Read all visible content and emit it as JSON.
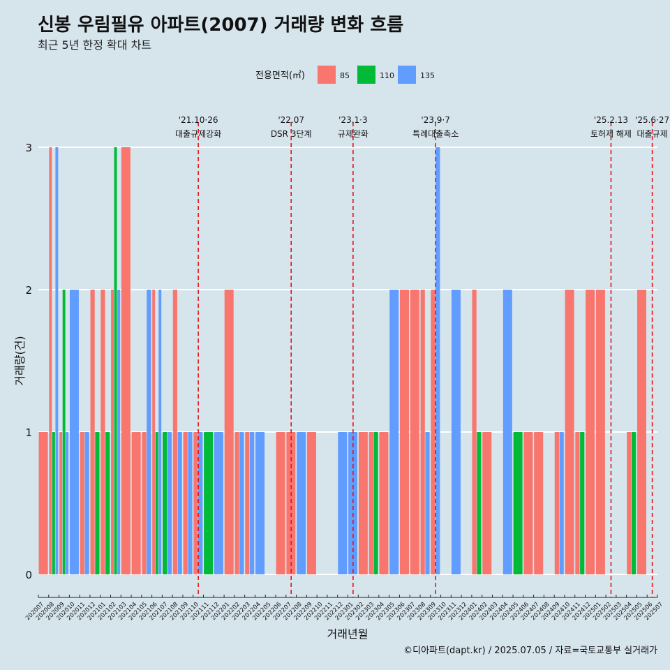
{
  "chart_data": {
    "type": "bar",
    "title": "신봉 우림필유 아파트(2007) 거래량 변화 흐름",
    "subtitle": "최근 5년 한정 확대 차트",
    "xlabel": "거래년월",
    "ylabel": "거래량(건)",
    "ylim": [
      0,
      3
    ],
    "yticks": [
      0,
      1,
      2,
      3
    ],
    "grid": "horizontal",
    "legend": {
      "title": "전용면적(㎡)",
      "placement": "top",
      "entries": [
        {
          "name": "85",
          "color": "#f8766d"
        },
        {
          "name": "110",
          "color": "#00ba38"
        },
        {
          "name": "135",
          "color": "#619cff"
        }
      ]
    },
    "categories": [
      "202007",
      "202008",
      "202009",
      "202010",
      "202011",
      "202012",
      "202101",
      "202102",
      "202103",
      "202104",
      "202105",
      "202106",
      "202107",
      "202108",
      "202109",
      "202110",
      "202111",
      "202112",
      "202201",
      "202202",
      "202203",
      "202204",
      "202205",
      "202206",
      "202207",
      "202208",
      "202209",
      "202210",
      "202211",
      "202212",
      "202301",
      "202302",
      "202303",
      "202304",
      "202305",
      "202306",
      "202307",
      "202308",
      "202309",
      "202310",
      "202311",
      "202312",
      "202401",
      "202402",
      "202403",
      "202404",
      "202405",
      "202406",
      "202407",
      "202408",
      "202409",
      "202410",
      "202411",
      "202412",
      "202501",
      "202502",
      "202503",
      "202504",
      "202505",
      "202506",
      "202507"
    ],
    "bars": [
      [
        [
          1,
          "85"
        ]
      ],
      [
        [
          3,
          "85"
        ],
        [
          1,
          "110"
        ],
        [
          3,
          "135"
        ]
      ],
      [
        [
          1,
          "85"
        ],
        [
          2,
          "110"
        ],
        [
          1,
          "135"
        ]
      ],
      [
        [
          2,
          "135"
        ]
      ],
      [
        [
          1,
          "85"
        ],
        [
          1,
          "135"
        ]
      ],
      [
        [
          2,
          "85"
        ],
        [
          1,
          "110"
        ]
      ],
      [
        [
          2,
          "85"
        ],
        [
          1,
          "110"
        ]
      ],
      [
        [
          2,
          "85"
        ],
        [
          3,
          "110"
        ],
        [
          2,
          "135"
        ]
      ],
      [
        [
          3,
          "85"
        ]
      ],
      [
        [
          1,
          "85"
        ]
      ],
      [
        [
          1,
          "85"
        ],
        [
          2,
          "135"
        ]
      ],
      [
        [
          2,
          "85"
        ],
        [
          1,
          "110"
        ],
        [
          2,
          "135"
        ]
      ],
      [
        [
          1,
          "110"
        ],
        [
          1,
          "135"
        ]
      ],
      [
        [
          2,
          "85"
        ],
        [
          1,
          "135"
        ]
      ],
      [
        [
          1,
          "85"
        ],
        [
          1,
          "135"
        ]
      ],
      [
        [
          1,
          "85"
        ],
        [
          1,
          "135"
        ]
      ],
      [
        [
          1,
          "110"
        ]
      ],
      [
        [
          1,
          "135"
        ]
      ],
      [
        [
          2,
          "85"
        ]
      ],
      [
        [
          1,
          "85"
        ],
        [
          1,
          "135"
        ]
      ],
      [
        [
          1,
          "85"
        ],
        [
          1,
          "135"
        ]
      ],
      [
        [
          1,
          "135"
        ]
      ],
      [],
      [
        [
          1,
          "85"
        ]
      ],
      [
        [
          1,
          "85"
        ]
      ],
      [
        [
          1,
          "135"
        ]
      ],
      [
        [
          1,
          "85"
        ]
      ],
      [],
      [],
      [
        [
          1,
          "135"
        ]
      ],
      [
        [
          1,
          "135"
        ]
      ],
      [
        [
          1,
          "85"
        ]
      ],
      [
        [
          1,
          "85"
        ],
        [
          1,
          "110"
        ]
      ],
      [
        [
          1,
          "85"
        ]
      ],
      [
        [
          2,
          "135"
        ]
      ],
      [
        [
          2,
          "85"
        ]
      ],
      [
        [
          2,
          "85"
        ]
      ],
      [
        [
          2,
          "85"
        ],
        [
          1,
          "135"
        ]
      ],
      [
        [
          2,
          "85"
        ],
        [
          3,
          "135"
        ]
      ],
      [],
      [
        [
          2,
          "135"
        ]
      ],
      [],
      [
        [
          2,
          "85"
        ],
        [
          1,
          "110"
        ]
      ],
      [
        [
          1,
          "85"
        ]
      ],
      [],
      [
        [
          2,
          "135"
        ]
      ],
      [
        [
          1,
          "110"
        ]
      ],
      [
        [
          1,
          "85"
        ]
      ],
      [
        [
          1,
          "85"
        ]
      ],
      [],
      [
        [
          1,
          "85"
        ],
        [
          1,
          "135"
        ]
      ],
      [
        [
          2,
          "85"
        ]
      ],
      [
        [
          1,
          "85"
        ],
        [
          1,
          "110"
        ]
      ],
      [
        [
          2,
          "85"
        ]
      ],
      [
        [
          2,
          "85"
        ]
      ],
      [],
      [],
      [
        [
          1,
          "85"
        ],
        [
          1,
          "110"
        ]
      ],
      [
        [
          2,
          "85"
        ]
      ],
      [],
      []
    ],
    "annotations": [
      {
        "x": "202110",
        "date": "'21.10·26",
        "label": "대출규제강화"
      },
      {
        "x": "202207",
        "date": "'22.07",
        "label": "DSR 3단계"
      },
      {
        "x": "202301",
        "date": "'23.1·3",
        "label": "규제완화"
      },
      {
        "x": "202309",
        "date": "'23.9·7",
        "label": "특례대출축소"
      },
      {
        "x": "202502",
        "date": "'25.2.13",
        "label": "토허제 해제"
      },
      {
        "x": "202506",
        "date": "'25.6·27",
        "label": "대출규제"
      }
    ]
  },
  "caption": "©디아파트(dapt.kr) / 2025.07.05 / 자료=국토교통부 실거래가"
}
